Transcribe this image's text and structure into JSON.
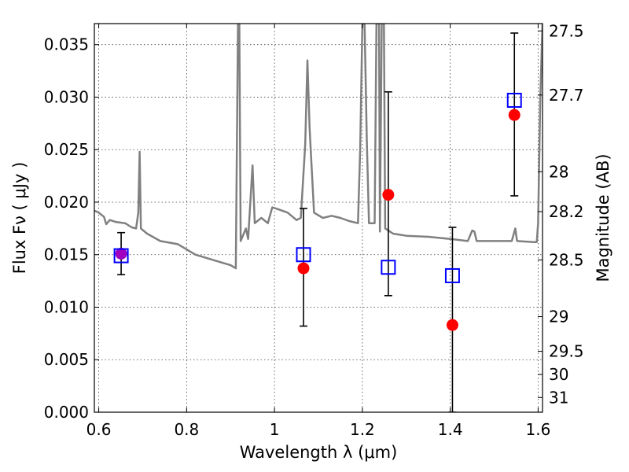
{
  "chart_data": {
    "type": "scatter",
    "xlabel": "Wavelength  λ (μm)",
    "ylabel": "Flux  Fν  ( μJy )",
    "y2label": "Magnitude (AB)",
    "xlim": [
      0.59,
      1.61
    ],
    "ylim": [
      0.0,
      0.037
    ],
    "grid": true,
    "x_ticks": [
      0.6,
      0.8,
      1.0,
      1.2,
      1.4,
      1.6
    ],
    "x_tick_labels": [
      "0.6",
      "0.8",
      "1",
      "1.2",
      "1.4",
      "1.6"
    ],
    "y_ticks": [
      0.0,
      0.005,
      0.01,
      0.015,
      0.02,
      0.025,
      0.03,
      0.035
    ],
    "y_tick_labels": [
      "0.000",
      "0.005",
      "0.010",
      "0.015",
      "0.020",
      "0.025",
      "0.030",
      "0.035"
    ],
    "y2_ticks": [
      {
        "label": "27.5",
        "flux": 0.0363
      },
      {
        "label": "27.7",
        "flux": 0.0302
      },
      {
        "label": "28",
        "flux": 0.0229
      },
      {
        "label": "28.2",
        "flux": 0.0191
      },
      {
        "label": "28.5",
        "flux": 0.0145
      },
      {
        "label": "29",
        "flux": 0.0091
      },
      {
        "label": "29.5",
        "flux": 0.0058
      },
      {
        "label": "30",
        "flux": 0.0036
      },
      {
        "label": "31",
        "flux": 0.0014
      }
    ],
    "series": [
      {
        "kind": "line",
        "color": "#808080",
        "points": [
          [
            0.59,
            0.0192
          ],
          [
            0.6,
            0.019
          ],
          [
            0.612,
            0.0186
          ],
          [
            0.617,
            0.0179
          ],
          [
            0.625,
            0.0183
          ],
          [
            0.64,
            0.0181
          ],
          [
            0.66,
            0.018
          ],
          [
            0.675,
            0.0176
          ],
          [
            0.685,
            0.0175
          ],
          [
            0.69,
            0.019
          ],
          [
            0.693,
            0.0248
          ],
          [
            0.696,
            0.0175
          ],
          [
            0.71,
            0.017
          ],
          [
            0.74,
            0.0163
          ],
          [
            0.78,
            0.016
          ],
          [
            0.82,
            0.015
          ],
          [
            0.86,
            0.0145
          ],
          [
            0.9,
            0.014
          ],
          [
            0.912,
            0.0137
          ],
          [
            0.917,
            0.037
          ],
          [
            0.92,
            0.037
          ],
          [
            0.923,
            0.0163
          ],
          [
            0.935,
            0.0175
          ],
          [
            0.94,
            0.0165
          ],
          [
            0.95,
            0.0235
          ],
          [
            0.955,
            0.018
          ],
          [
            0.97,
            0.0185
          ],
          [
            0.985,
            0.018
          ],
          [
            0.995,
            0.0195
          ],
          [
            1.01,
            0.0193
          ],
          [
            1.03,
            0.019
          ],
          [
            1.05,
            0.0183
          ],
          [
            1.06,
            0.0185
          ],
          [
            1.07,
            0.0255
          ],
          [
            1.075,
            0.0335
          ],
          [
            1.08,
            0.027
          ],
          [
            1.09,
            0.019
          ],
          [
            1.11,
            0.0185
          ],
          [
            1.13,
            0.0187
          ],
          [
            1.15,
            0.0185
          ],
          [
            1.17,
            0.0182
          ],
          [
            1.19,
            0.018
          ],
          [
            1.195,
            0.025
          ],
          [
            1.2,
            0.037
          ],
          [
            1.205,
            0.037
          ],
          [
            1.21,
            0.026
          ],
          [
            1.215,
            0.018
          ],
          [
            1.228,
            0.018
          ],
          [
            1.232,
            0.037
          ],
          [
            1.238,
            0.037
          ],
          [
            1.24,
            0.0172
          ],
          [
            1.244,
            0.037
          ],
          [
            1.249,
            0.037
          ],
          [
            1.252,
            0.0175
          ],
          [
            1.27,
            0.017
          ],
          [
            1.3,
            0.0168
          ],
          [
            1.35,
            0.0167
          ],
          [
            1.4,
            0.0165
          ],
          [
            1.44,
            0.0163
          ],
          [
            1.45,
            0.0173
          ],
          [
            1.455,
            0.0172
          ],
          [
            1.46,
            0.0163
          ],
          [
            1.5,
            0.0163
          ],
          [
            1.54,
            0.0163
          ],
          [
            1.548,
            0.0175
          ],
          [
            1.552,
            0.0163
          ],
          [
            1.59,
            0.0162
          ],
          [
            1.597,
            0.0162
          ],
          [
            1.6,
            0.018
          ],
          [
            1.605,
            0.03
          ],
          [
            1.61,
            0.037
          ]
        ]
      },
      {
        "kind": "errorbar",
        "color": "#000000",
        "points": [
          {
            "x": 0.651,
            "y": 0.0151,
            "ylow": 0.0131,
            "yhigh": 0.0171
          },
          {
            "x": 1.066,
            "y": 0.0137,
            "ylow": 0.0082,
            "yhigh": 0.0194
          },
          {
            "x": 1.259,
            "y": 0.0207,
            "ylow": 0.0111,
            "yhigh": 0.0305
          },
          {
            "x": 1.405,
            "y": 0.0083,
            "ylow": 0.0,
            "yhigh": 0.0176
          },
          {
            "x": 1.546,
            "y": 0.0283,
            "ylow": 0.0206,
            "yhigh": 0.0361
          }
        ]
      },
      {
        "kind": "markers",
        "marker": "circle",
        "color": "#ff0000",
        "points": [
          {
            "x": 0.651,
            "y": 0.0151,
            "color": "#a000c0"
          },
          {
            "x": 1.066,
            "y": 0.0137
          },
          {
            "x": 1.259,
            "y": 0.0207
          },
          {
            "x": 1.405,
            "y": 0.0083
          },
          {
            "x": 1.546,
            "y": 0.0283
          }
        ]
      },
      {
        "kind": "markers",
        "marker": "open-square",
        "color": "#0000ff",
        "points": [
          {
            "x": 0.651,
            "y": 0.0149
          },
          {
            "x": 1.066,
            "y": 0.015
          },
          {
            "x": 1.259,
            "y": 0.0138
          },
          {
            "x": 1.405,
            "y": 0.013
          },
          {
            "x": 1.546,
            "y": 0.0297
          }
        ]
      }
    ]
  }
}
